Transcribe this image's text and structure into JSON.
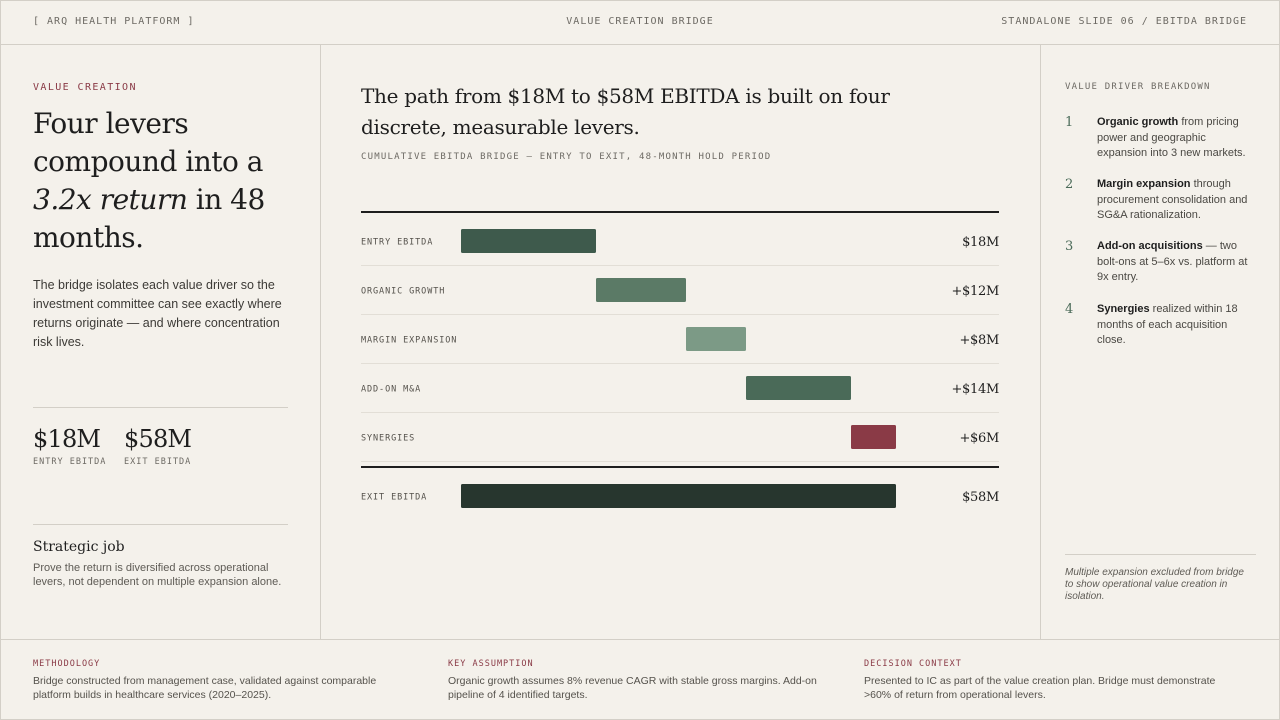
{
  "header": {
    "left": "[ ARQ HEALTH PLATFORM ]",
    "center": "VALUE CREATION BRIDGE",
    "right": "STANDALONE SLIDE 06 / EBITDA BRIDGE"
  },
  "left": {
    "eyebrow": "VALUE CREATION",
    "headline_pre": "Four levers compound into a",
    "headline_em": "3.2x return",
    "headline_post": "in 48 months.",
    "lede": "The bridge isolates each value driver so the investment committee can see exactly where returns originate — and where concentration risk lives.",
    "stats": [
      {
        "value": "$18M",
        "label": "ENTRY EBITDA"
      },
      {
        "value": "$58M",
        "label": "EXIT EBITDA"
      }
    ],
    "job_title": "Strategic job",
    "job_text": "Prove the return is diversified across operational levers, not dependent on multiple expansion alone."
  },
  "main": {
    "title": "The path from $18M to $58M EBITDA is built on four discrete, measurable levers.",
    "subtitle": "CUMULATIVE EBITDA BRIDGE — ENTRY TO EXIT, 48-MONTH HOLD PERIOD"
  },
  "chart_data": {
    "type": "bar",
    "subtype": "waterfall",
    "categories": [
      "ENTRY EBITDA",
      "ORGANIC GROWTH",
      "MARGIN EXPANSION",
      "ADD-ON M&A",
      "SYNERGIES",
      "EXIT EBITDA"
    ],
    "values": [
      18,
      12,
      8,
      14,
      6,
      58
    ],
    "kinds": [
      "total",
      "delta",
      "delta",
      "delta",
      "delta",
      "total"
    ],
    "value_labels": [
      "$18M",
      "+$12M",
      "+$8M",
      "+$14M",
      "+$6M",
      "$58M"
    ],
    "colors": [
      "#3e5a4c",
      "#5b7a66",
      "#7c9a86",
      "#4a6a58",
      "#8a3a46",
      "#27362e"
    ],
    "unit": "$M",
    "xlim": [
      0,
      58
    ]
  },
  "right": {
    "eyebrow": "VALUE DRIVER BREAKDOWN",
    "drivers": [
      {
        "num": "1",
        "bold": "Organic growth",
        "text": " from pricing power and geographic expansion into 3 new markets."
      },
      {
        "num": "2",
        "bold": "Margin expansion",
        "text": " through procurement consolidation and SG&A rationalization."
      },
      {
        "num": "3",
        "bold": "Add-on acquisitions",
        "text": " — two bolt-ons at 5–6x vs. platform at 9x entry."
      },
      {
        "num": "4",
        "bold": "Synergies",
        "text": " realized within 18 months of each acquisition close."
      }
    ],
    "note": "Multiple expansion excluded from bridge to show operational value creation in isolation."
  },
  "footer": [
    {
      "key": "METHODOLOGY",
      "text": "Bridge constructed from management case, validated against comparable platform builds in healthcare services (2020–2025)."
    },
    {
      "key": "KEY ASSUMPTION",
      "text": "Organic growth assumes 8% revenue CAGR with stable gross margins. Add-on pipeline of 4 identified targets."
    },
    {
      "key": "DECISION CONTEXT",
      "text": "Presented to IC as part of the value creation plan. Bridge must demonstrate >60% of return from operational levers."
    }
  ]
}
